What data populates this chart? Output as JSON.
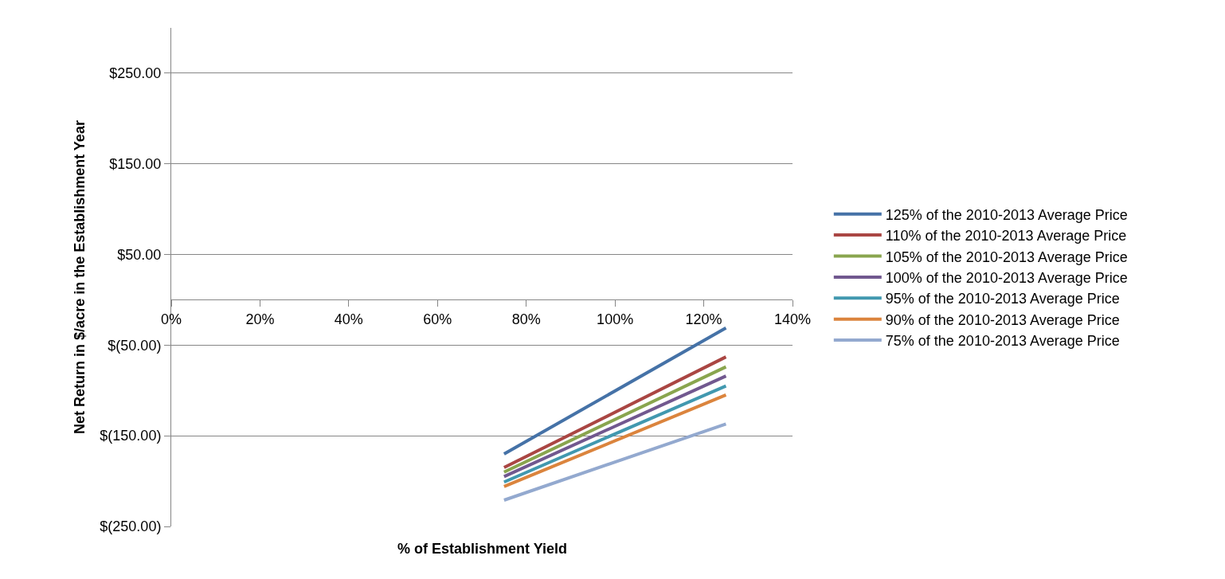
{
  "chart_data": {
    "type": "line",
    "xlabel": "% of Establishment Yield",
    "ylabel": "Net Return in $/acre in the Establishment Year",
    "x": [
      75,
      125
    ],
    "series": [
      {
        "name": "125% of the 2010-2013 Average Price",
        "color": "#4572a7",
        "values": [
          -170,
          -31
        ]
      },
      {
        "name": "110% of the 2010-2013 Average Price",
        "color": "#aa4643",
        "values": [
          -185,
          -63
        ]
      },
      {
        "name": "105% of the 2010-2013 Average Price",
        "color": "#89a54e",
        "values": [
          -190,
          -74
        ]
      },
      {
        "name": "100% of the 2010-2013 Average Price",
        "color": "#71588f",
        "values": [
          -195,
          -84
        ]
      },
      {
        "name": "95% of the 2010-2013 Average Price",
        "color": "#4198af",
        "values": [
          -201,
          -95
        ]
      },
      {
        "name": "90% of the 2010-2013 Average Price",
        "color": "#db843d",
        "values": [
          -206,
          -105
        ]
      },
      {
        "name": "75% of the 2010-2013 Average Price",
        "color": "#93a9cf",
        "values": [
          -221,
          -137
        ]
      }
    ],
    "xlim": [
      0,
      140
    ],
    "xticks": [
      {
        "value": 0,
        "label": "0%"
      },
      {
        "value": 20,
        "label": "20%"
      },
      {
        "value": 40,
        "label": "40%"
      },
      {
        "value": 60,
        "label": "60%"
      },
      {
        "value": 80,
        "label": "80%"
      },
      {
        "value": 100,
        "label": "100%"
      },
      {
        "value": 120,
        "label": "120%"
      },
      {
        "value": 140,
        "label": "140%"
      }
    ],
    "ylim": [
      -250,
      300
    ],
    "yticks": [
      {
        "value": -250,
        "label": "$(250.00)"
      },
      {
        "value": -150,
        "label": "$(150.00)"
      },
      {
        "value": -50,
        "label": "$(50.00)"
      },
      {
        "value": 50,
        "label": "$50.00"
      },
      {
        "value": 150,
        "label": "$150.00"
      },
      {
        "value": 250,
        "label": "$250.00"
      }
    ],
    "grid": "y",
    "legend": "right",
    "marker": "none",
    "line_style": "solid"
  }
}
